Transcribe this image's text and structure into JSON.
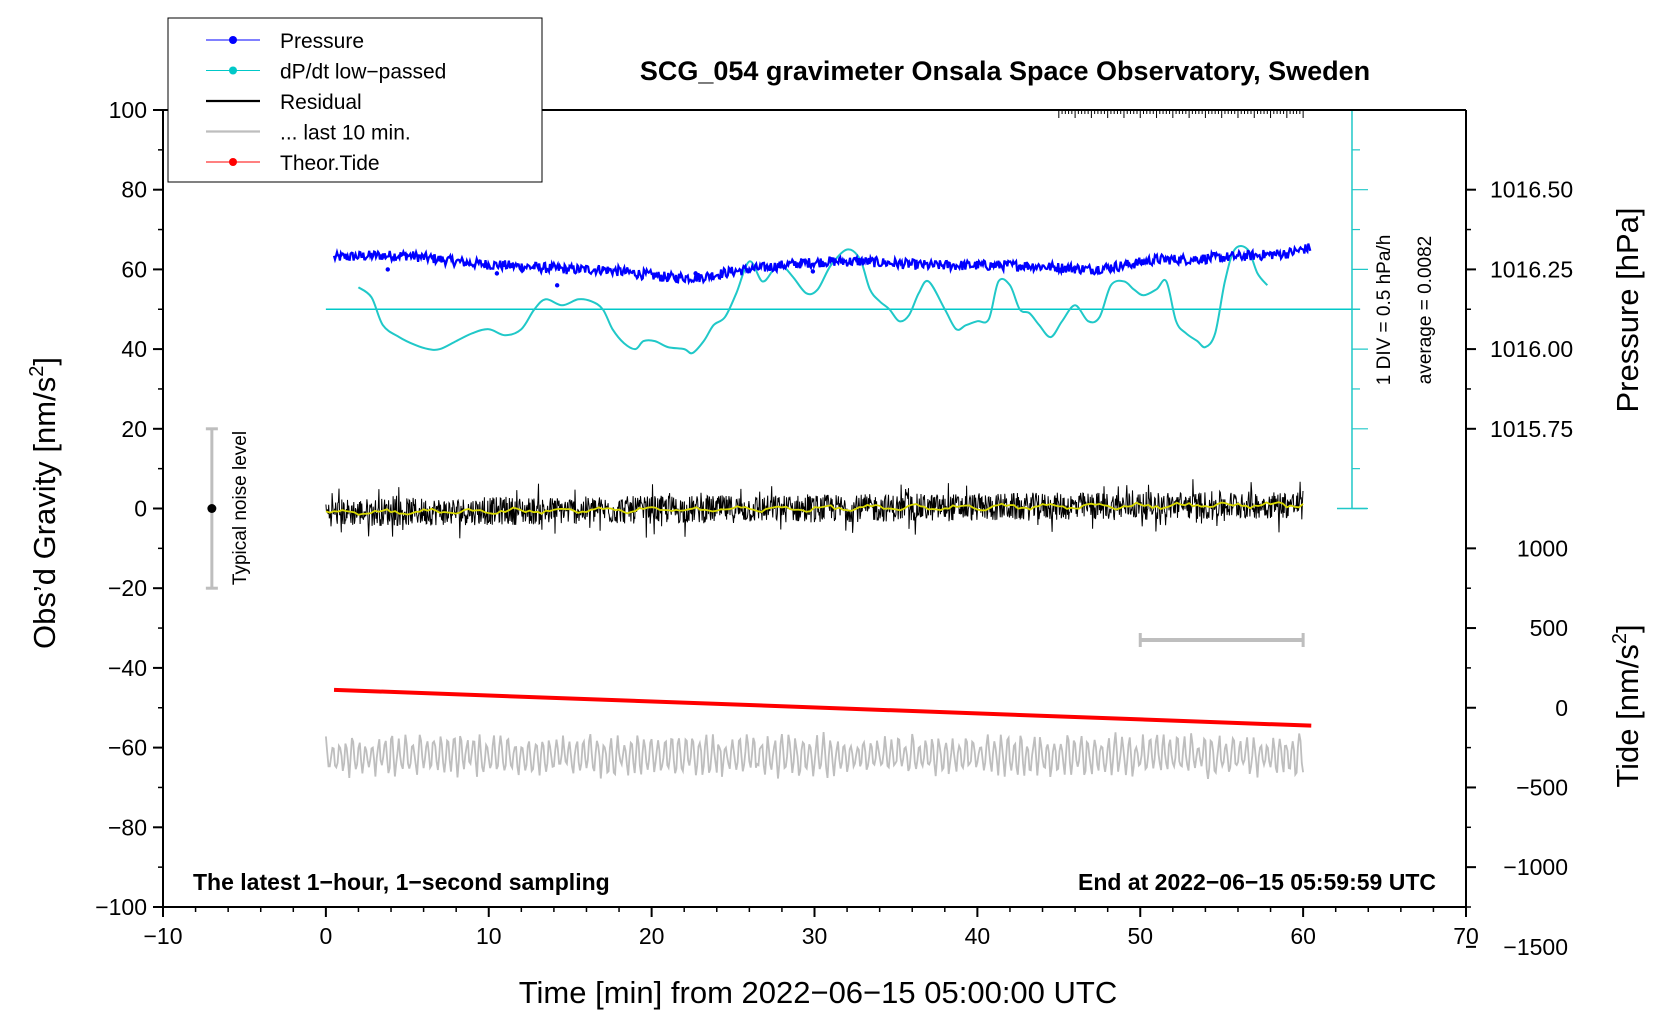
{
  "chart_data": {
    "type": "line",
    "title": "SCG_054 gravimeter Onsala Space Observatory, Sweden",
    "xlabel": "Time [min] from 2022−06−15 05:00:00 UTC",
    "ylabel_main": "Obs’d Gravity [nm/s",
    "ylabel_main_sup": "2",
    "ylabel_main_end": "]",
    "ylabel_pressure": "Pressure [hPa]",
    "ylabel_tide": "Tide [nm/s",
    "ylabel_tide_sup": "2",
    "ylabel_tide_end": "]",
    "xlim": [
      -10,
      70
    ],
    "ylim": [
      -100,
      100
    ],
    "x_ticks": [
      -10,
      0,
      10,
      20,
      30,
      40,
      50,
      60,
      70
    ],
    "x_tick_labels": [
      "−10",
      "0",
      "10",
      "20",
      "30",
      "40",
      "50",
      "60",
      "70"
    ],
    "y_ticks": [
      100,
      80,
      60,
      40,
      20,
      0,
      -20,
      -40,
      -60,
      -80,
      -100
    ],
    "y_tick_labels": [
      "100",
      "80",
      "60",
      "40",
      "20",
      "0",
      "−20",
      "−40",
      "−60",
      "−80",
      "−100"
    ],
    "pressure_ticks": [
      1016.5,
      1016.25,
      1016.0,
      1015.75
    ],
    "pressure_tick_labels": [
      "1016.50",
      "1016.25",
      "1016.00",
      "1015.75"
    ],
    "tide_ticks": [
      1000,
      500,
      0,
      -500,
      -1000,
      -1500
    ],
    "tide_tick_labels": [
      "1000",
      "500",
      "0",
      "−500",
      "−1000",
      "−1500"
    ],
    "pressure_to_plot": {
      "ref_hpa": 1016.0,
      "ref_y": 40,
      "y_per_hpa": 80
    },
    "tide_to_plot": {
      "ref": 0,
      "ref_y": -50,
      "y_per_unit": 0.04
    },
    "legend": [
      {
        "label": "Pressure",
        "color": "#0000ff",
        "marker": true
      },
      {
        "label": "dP/dt low−passed",
        "color": "#00c8c8",
        "marker": true
      },
      {
        "label": "Residual",
        "color": "#000000",
        "marker": false
      },
      {
        "label": "... last 10 min.",
        "color": "#bebebe",
        "marker": false
      },
      {
        "label": "Theor.Tide",
        "color": "#ff0000",
        "marker": true
      }
    ],
    "series": [
      {
        "name": "Pressure",
        "color": "#0000ff",
        "x": [
          0.5,
          3,
          5,
          7,
          9,
          11,
          13,
          15,
          17,
          19,
          21,
          23,
          25,
          27,
          29,
          31,
          33,
          35,
          37,
          39,
          41,
          43,
          45,
          47,
          49,
          51,
          53,
          55,
          57,
          59,
          60.5
        ],
        "y": [
          63,
          63.5,
          63.5,
          62.5,
          61.5,
          61,
          60.5,
          60,
          60,
          59,
          58,
          58,
          59.5,
          60.5,
          61.5,
          62,
          62,
          61.5,
          61,
          61,
          61,
          61,
          60.5,
          60,
          61,
          62.5,
          62.5,
          63,
          63.5,
          64,
          65.5
        ]
      },
      {
        "name": "dP/dt low-passed",
        "color": "#00c8c8",
        "x": [
          2,
          2.8,
          3.5,
          4.5,
          5.5,
          6.3,
          7,
          8,
          9,
          10,
          11,
          12,
          12.8,
          13.5,
          14.5,
          15.5,
          16.3,
          17,
          17.6,
          18.3,
          19,
          19.5,
          20.2,
          21,
          22,
          22.5,
          23.2,
          23.8,
          24.5,
          25.2,
          26,
          26.8,
          27.5,
          28,
          28.7,
          29.5,
          30.2,
          31,
          32,
          32.8,
          33.4,
          34,
          34.6,
          35.2,
          35.8,
          36.4,
          37,
          38,
          38.7,
          39.3,
          40,
          40.7,
          41.3,
          42,
          42.6,
          43.2,
          43.8,
          44.5,
          45.2,
          46,
          46.8,
          47.5,
          48.2,
          49,
          49.6,
          50.2,
          51,
          51.6,
          52.2,
          52.8,
          53.5,
          54,
          54.6,
          55.2,
          55.8,
          56.6,
          57.2,
          57.8
        ],
        "y": [
          55.5,
          53,
          46,
          43,
          41,
          40,
          40,
          42,
          44,
          45,
          43.5,
          45,
          50,
          52.5,
          51,
          52.5,
          52,
          50,
          45,
          41.5,
          40,
          42,
          42,
          40.5,
          40,
          39,
          42,
          46,
          48,
          54,
          62,
          57,
          60,
          61,
          58,
          54,
          55,
          61,
          65,
          62.5,
          55,
          52,
          50,
          47,
          48.5,
          54,
          57,
          50,
          45,
          46,
          47,
          47.5,
          57,
          56,
          50,
          49,
          46,
          43,
          47,
          51,
          47,
          48,
          56,
          57,
          55,
          53.5,
          55,
          57,
          47,
          44,
          42,
          40.5,
          44,
          57,
          65,
          65,
          59,
          56
        ]
      },
      {
        "name": "Residual",
        "color": "#000000",
        "x": [
          0,
          60
        ],
        "y": [
          -1,
          1
        ]
      },
      {
        "name": "... last 10 min.",
        "color": "#bebebe",
        "x": [
          0,
          60
        ],
        "y": [
          -62,
          -62
        ]
      },
      {
        "name": "Theor.Tide",
        "color": "#ff0000",
        "x": [
          0.5,
          60.5
        ],
        "y": [
          -45.5,
          -54.5
        ]
      }
    ],
    "pressure_scale_bar": {
      "x": 63,
      "y_top": 100,
      "y_bottom": 0
    },
    "dpdt_zero_line": 50,
    "dpdt_label_1": "1 DIV = 0.5 hPa/h",
    "dpdt_label_2": "average = 0.0082",
    "noise_label": "Typical noise level",
    "noise_bar": {
      "x": -7,
      "y_min": -20,
      "y_max": 20,
      "center": 0
    },
    "ten_min_bar": {
      "x_start": 50,
      "x_end": 60,
      "y": -33
    },
    "footer_left": "The latest 1−hour, 1−second sampling",
    "footer_right": "End at 2022−06−15 05:59:59 UTC",
    "ruler": {
      "left": 45,
      "right": 60,
      "minor_step": 0.2,
      "major_step": 1
    }
  }
}
